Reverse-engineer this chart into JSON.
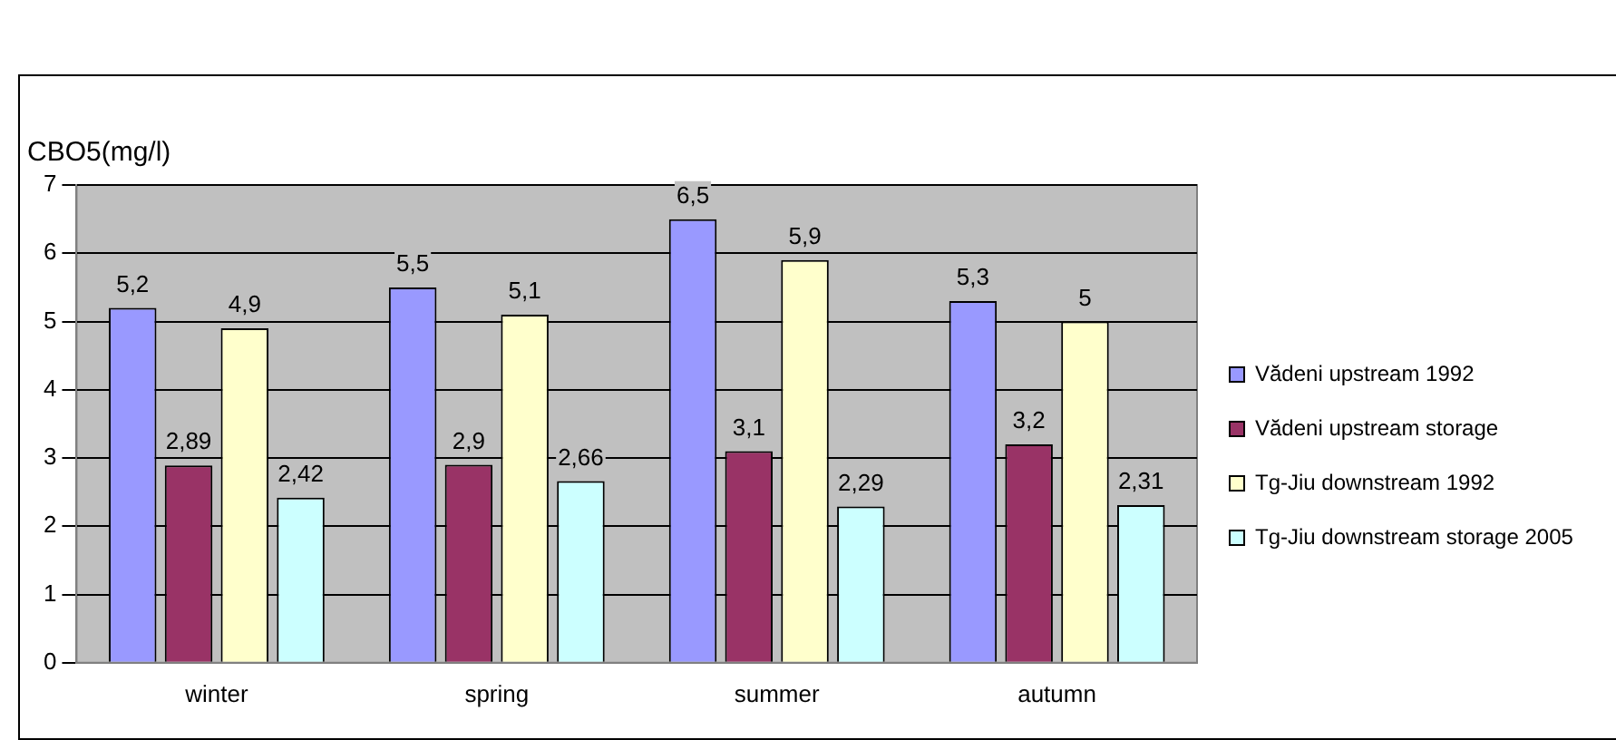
{
  "chart_data": {
    "type": "bar",
    "ylabel": "CBO5(mg/l)",
    "categories": [
      "winter",
      "spring",
      "summer",
      "autumn"
    ],
    "series": [
      {
        "name": "Vădeni upstream 1992",
        "color": "#9999ff",
        "values": [
          5.2,
          5.5,
          6.5,
          5.3
        ],
        "value_labels": [
          "5,2",
          "5,5",
          "6,5",
          "5,3"
        ]
      },
      {
        "name": "Vădeni upstream storage",
        "color": "#993366",
        "values": [
          2.89,
          2.9,
          3.1,
          3.2
        ],
        "value_labels": [
          "2,89",
          "2,9",
          "3,1",
          "3,2"
        ]
      },
      {
        "name": "Tg-Jiu downstream 1992",
        "color": "#ffffcc",
        "values": [
          4.9,
          5.1,
          5.9,
          5
        ],
        "value_labels": [
          "4,9",
          "5,1",
          "5,9",
          "5"
        ]
      },
      {
        "name": "Tg-Jiu downstream storage 2005",
        "color": "#ccffff",
        "values": [
          2.42,
          2.66,
          2.29,
          2.31
        ],
        "value_labels": [
          "2,42",
          "2,66",
          "2,29",
          "2,31"
        ]
      }
    ],
    "ylim": [
      0,
      7
    ],
    "yticks": [
      0,
      1,
      2,
      3,
      4,
      5,
      6,
      7
    ],
    "grid": "y",
    "legend": "right"
  }
}
